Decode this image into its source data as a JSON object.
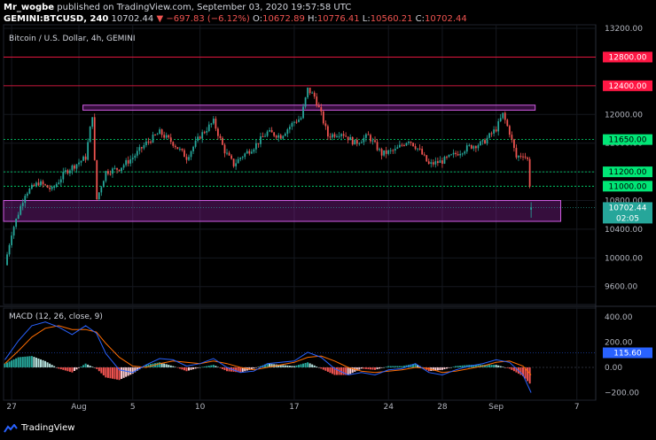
{
  "header": {
    "author": "Mr_wogbe",
    "published": " published on TradingView.com, September 03, 2020 19:57:58 UTC",
    "symbol": "GEMINI:BTCUSD, 240",
    "last": "10702.44",
    "change": "▼ −697.83 (−6.12%)",
    "o_label": "O:",
    "o": "10672.89",
    "h_label": "H:",
    "h": "10776.41",
    "l_label": "L:",
    "l": "10560.21",
    "c_label": "C:",
    "c": "10702.44"
  },
  "footer": {
    "brand": "TradingView"
  },
  "colors": {
    "up": "#26a69a",
    "down": "#ef5350",
    "zone": "#9c27b0",
    "support": "#00e676",
    "resistance": "#ff1744",
    "macd": "#2962ff",
    "signal": "#ff6d00"
  },
  "chart_data": [
    {
      "type": "candlestick",
      "title": "Bitcoin / U.S. Dollar, 4h, GEMINI",
      "ylim": [
        9350,
        13250
      ],
      "y_ticks": [
        9600,
        10000,
        10400,
        10800,
        11200,
        11600,
        12000,
        12400,
        12800,
        13200
      ],
      "x_ticks": [
        {
          "label": "27",
          "t": -5
        },
        {
          "label": "Aug",
          "t": 0
        },
        {
          "label": "5",
          "t": 4
        },
        {
          "label": "10",
          "t": 9
        },
        {
          "label": "17",
          "t": 16
        },
        {
          "label": "24",
          "t": 23
        },
        {
          "label": "28",
          "t": 27
        },
        {
          "label": "Sep",
          "t": 31
        },
        {
          "label": "7",
          "t": 37
        }
      ],
      "x_range_days": [
        -5.6,
        38.4
      ],
      "price_path": [
        [
          -5.5,
          9900
        ],
        [
          -5.0,
          10350
        ],
        [
          -4.0,
          10900
        ],
        [
          -3.0,
          11050
        ],
        [
          -2.0,
          10950
        ],
        [
          -1.0,
          11200
        ],
        [
          0.5,
          11400
        ],
        [
          1.0,
          12000
        ],
        [
          1.3,
          10800
        ],
        [
          2.0,
          11200
        ],
        [
          3.0,
          11250
        ],
        [
          4.0,
          11400
        ],
        [
          5.0,
          11600
        ],
        [
          6.0,
          11750
        ],
        [
          7.0,
          11600
        ],
        [
          8.0,
          11400
        ],
        [
          9.0,
          11700
        ],
        [
          10.0,
          11900
        ],
        [
          10.8,
          11500
        ],
        [
          11.5,
          11300
        ],
        [
          12.0,
          11400
        ],
        [
          13.0,
          11550
        ],
        [
          14.0,
          11750
        ],
        [
          15.0,
          11700
        ],
        [
          16.0,
          11900
        ],
        [
          16.5,
          11950
        ],
        [
          17.0,
          12350
        ],
        [
          17.5,
          12250
        ],
        [
          18.0,
          12000
        ],
        [
          18.5,
          11700
        ],
        [
          19.5,
          11750
        ],
        [
          20.5,
          11600
        ],
        [
          21.5,
          11700
        ],
        [
          22.5,
          11450
        ],
        [
          23.5,
          11500
        ],
        [
          24.5,
          11650
        ],
        [
          25.3,
          11500
        ],
        [
          26.0,
          11300
        ],
        [
          27.0,
          11350
        ],
        [
          28.0,
          11450
        ],
        [
          29.0,
          11550
        ],
        [
          30.0,
          11600
        ],
        [
          31.0,
          11800
        ],
        [
          31.5,
          12000
        ],
        [
          32.0,
          11750
        ],
        [
          32.5,
          11400
        ],
        [
          33.0,
          11450
        ],
        [
          33.4,
          11350
        ],
        [
          33.6,
          10700
        ]
      ],
      "last_candle": {
        "o": 10672.89,
        "h": 10776.41,
        "l": 10560.21,
        "c": 10702.44
      },
      "levels": [
        {
          "price": 12800,
          "label": "12800.00",
          "kind": "resistance"
        },
        {
          "price": 12400,
          "label": "12400.00",
          "kind": "resistance"
        },
        {
          "price": 11650,
          "label": "11650.00",
          "kind": "support"
        },
        {
          "price": 11200,
          "label": "11200.00",
          "kind": "support"
        },
        {
          "price": 11000,
          "label": "11000.00",
          "kind": "support"
        }
      ],
      "zones": [
        {
          "from_day": 0.3,
          "to_day": 33.9,
          "low": 12060,
          "high": 12130
        },
        {
          "from_day": -5.6,
          "to_day": 35.8,
          "low": 10510,
          "high": 10800
        }
      ],
      "price_badge": {
        "price": 10702.44,
        "label": "10702.44",
        "countdown": "02:05"
      }
    },
    {
      "type": "macd",
      "title": "MACD (12, 26, close, 9)",
      "ylim": [
        -260,
        470
      ],
      "y_ticks": [
        400,
        200,
        0,
        -200
      ],
      "y_tick_labels": [
        "400.00",
        "200.00",
        "0.00",
        "−200.00"
      ],
      "value_badge": {
        "value": 115.6,
        "label": "115.60"
      },
      "macd": [
        [
          -5.5,
          60
        ],
        [
          -4.5,
          210
        ],
        [
          -3.5,
          330
        ],
        [
          -2.5,
          360
        ],
        [
          -1.5,
          320
        ],
        [
          -0.5,
          260
        ],
        [
          0.5,
          330
        ],
        [
          1.3,
          270
        ],
        [
          2.0,
          110
        ],
        [
          3.0,
          -20
        ],
        [
          4.0,
          -40
        ],
        [
          5.0,
          20
        ],
        [
          6.0,
          70
        ],
        [
          7.0,
          60
        ],
        [
          8.0,
          10
        ],
        [
          9.0,
          30
        ],
        [
          10.0,
          70
        ],
        [
          11.0,
          0
        ],
        [
          12.0,
          -40
        ],
        [
          13.0,
          -30
        ],
        [
          14.0,
          30
        ],
        [
          15.0,
          40
        ],
        [
          16.0,
          50
        ],
        [
          17.0,
          120
        ],
        [
          18.0,
          80
        ],
        [
          19.0,
          -10
        ],
        [
          20.0,
          -60
        ],
        [
          21.0,
          -40
        ],
        [
          22.0,
          -60
        ],
        [
          23.0,
          -20
        ],
        [
          24.0,
          -10
        ],
        [
          25.0,
          30
        ],
        [
          26.0,
          -40
        ],
        [
          27.0,
          -60
        ],
        [
          28.0,
          -20
        ],
        [
          29.0,
          10
        ],
        [
          30.0,
          30
        ],
        [
          31.0,
          60
        ],
        [
          32.0,
          40
        ],
        [
          33.0,
          -60
        ],
        [
          33.6,
          -200
        ]
      ],
      "signal": [
        [
          -5.5,
          30
        ],
        [
          -4.5,
          130
        ],
        [
          -3.5,
          240
        ],
        [
          -2.5,
          310
        ],
        [
          -1.5,
          330
        ],
        [
          -0.5,
          300
        ],
        [
          0.5,
          300
        ],
        [
          1.3,
          280
        ],
        [
          2.0,
          190
        ],
        [
          3.0,
          80
        ],
        [
          4.0,
          10
        ],
        [
          5.0,
          0
        ],
        [
          6.0,
          30
        ],
        [
          7.0,
          50
        ],
        [
          8.0,
          40
        ],
        [
          9.0,
          30
        ],
        [
          10.0,
          50
        ],
        [
          11.0,
          30
        ],
        [
          12.0,
          0
        ],
        [
          13.0,
          -20
        ],
        [
          14.0,
          0
        ],
        [
          15.0,
          20
        ],
        [
          16.0,
          40
        ],
        [
          17.0,
          80
        ],
        [
          18.0,
          90
        ],
        [
          19.0,
          50
        ],
        [
          20.0,
          0
        ],
        [
          21.0,
          -30
        ],
        [
          22.0,
          -40
        ],
        [
          23.0,
          -30
        ],
        [
          24.0,
          -20
        ],
        [
          25.0,
          0
        ],
        [
          26.0,
          -10
        ],
        [
          27.0,
          -40
        ],
        [
          28.0,
          -30
        ],
        [
          29.0,
          -10
        ],
        [
          30.0,
          10
        ],
        [
          31.0,
          40
        ],
        [
          32.0,
          50
        ],
        [
          33.0,
          10
        ],
        [
          33.6,
          -60
        ]
      ]
    }
  ]
}
